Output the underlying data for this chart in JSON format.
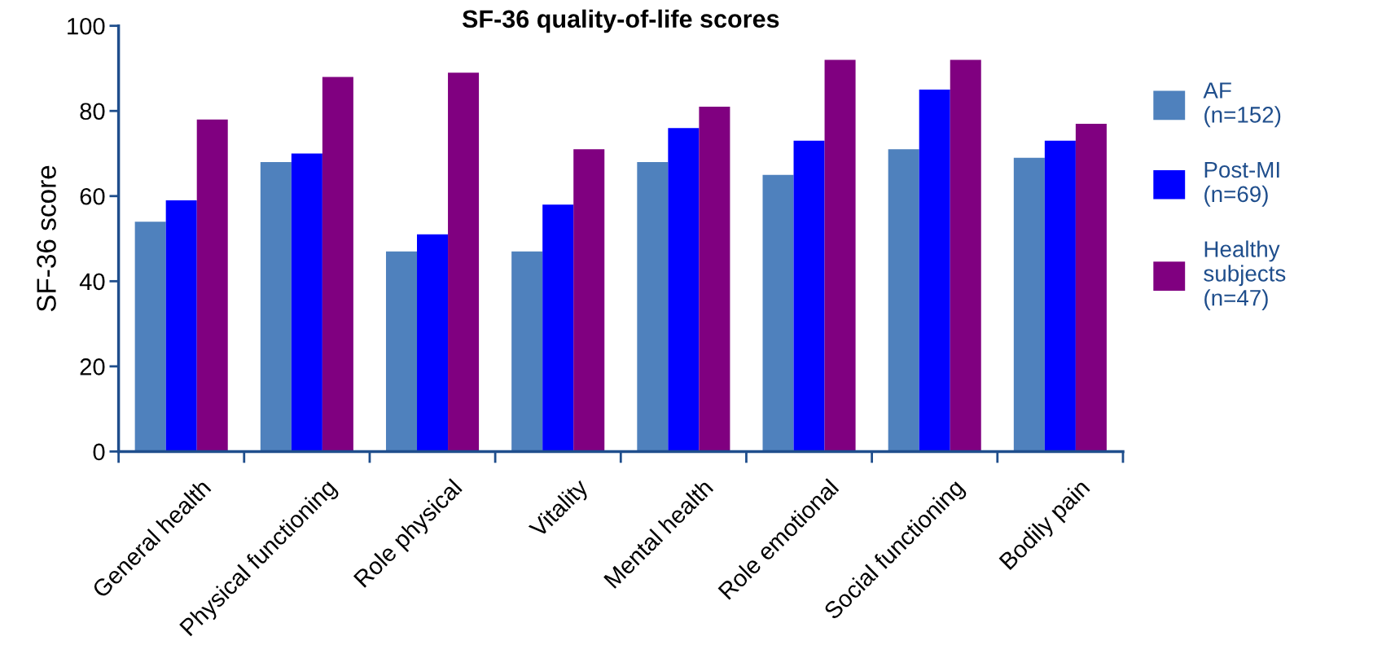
{
  "chart_data": {
    "type": "bar",
    "title": "SF-36 quality-of-life scores",
    "ylabel": "SF-36 score",
    "categories": [
      "General health",
      "Physical functioning",
      "Role physical",
      "Vitality",
      "Mental health",
      "Role emotional",
      "Social functioning",
      "Bodily pain"
    ],
    "series": [
      {
        "name": "AF\n(n=152)",
        "color": "#4f81bd",
        "values": [
          54,
          68,
          47,
          47,
          68,
          65,
          71,
          69
        ]
      },
      {
        "name": "Post-MI\n(n=69)",
        "color": "#0000ff",
        "values": [
          59,
          70,
          51,
          58,
          76,
          73,
          85,
          73
        ]
      },
      {
        "name": "Healthy\nsubjects\n(n=47)",
        "color": "#800080",
        "values": [
          78,
          88,
          89,
          71,
          81,
          92,
          92,
          77
        ]
      }
    ],
    "ylim": [
      0,
      100
    ],
    "yticks": [
      0,
      20,
      40,
      60,
      80,
      100
    ],
    "grid": false,
    "legend": "right"
  }
}
